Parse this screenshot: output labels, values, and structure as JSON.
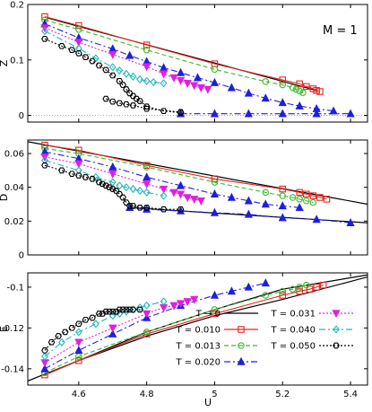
{
  "annotation": "M = 1",
  "colors": {
    "T0": "#000000",
    "T010": "#e8251f",
    "T013": "#3cb82e",
    "T020": "#1f1fe0",
    "T031": "#e020e0",
    "T040": "#20b8b8",
    "T050": "#000000"
  },
  "chart_data": {
    "type": "line",
    "xlabel": "U",
    "xlim": [
      4.45,
      5.45
    ],
    "xticks": [
      "4.6",
      "4.8",
      "5",
      "5.2",
      "5.4"
    ],
    "xtick_values": [
      4.6,
      4.8,
      5.0,
      5.2,
      5.4
    ],
    "legend": {
      "position": "inside-bottom-right of bottom panel",
      "entries": [
        {
          "key": "T0",
          "label": "T → 0",
          "marker": "none",
          "dash": "solid"
        },
        {
          "key": "T010",
          "label": "T = 0.010",
          "marker": "square",
          "dash": "solid"
        },
        {
          "key": "T013",
          "label": "T = 0.013",
          "marker": "circle",
          "dash": "dashed"
        },
        {
          "key": "T020",
          "label": "T = 0.020",
          "marker": "triangle-up",
          "dash": "dashdot"
        },
        {
          "key": "T031",
          "label": "T = 0.031",
          "marker": "triangle-down",
          "dash": "dotted"
        },
        {
          "key": "T040",
          "label": "T = 0.040",
          "marker": "diamond",
          "dash": "dashdot"
        },
        {
          "key": "T050",
          "label": "T = 0.050",
          "marker": "hexagon",
          "dash": "dotted"
        }
      ]
    },
    "panels": [
      {
        "ylabel": "Z",
        "ylim": [
          -0.012,
          0.2
        ],
        "yticks": [
          "0",
          "0.1",
          "0.2"
        ],
        "ytick_values": [
          0,
          0.1,
          0.2
        ],
        "series": [
          {
            "key": "T0",
            "x": [
              4.5,
              5.3
            ],
            "y": [
              0.177,
              0.045
            ]
          },
          {
            "key": "T010",
            "x": [
              4.5,
              4.6,
              4.8,
              5.0,
              5.2,
              5.25,
              5.27,
              5.29,
              5.3,
              5.31
            ],
            "y": [
              0.178,
              0.162,
              0.127,
              0.093,
              0.064,
              0.057,
              0.052,
              0.048,
              0.045,
              0.043
            ]
          },
          {
            "key": "T013",
            "x": [
              4.5,
              4.6,
              4.8,
              5.0,
              5.15,
              5.2,
              5.23,
              5.24,
              5.25,
              5.26
            ],
            "y": [
              0.172,
              0.155,
              0.118,
              0.083,
              0.061,
              0.055,
              0.05,
              0.047,
              0.044,
              0.041
            ]
          },
          {
            "key": "T020",
            "x": [
              4.5,
              4.6,
              4.7,
              4.75,
              4.8,
              4.85,
              4.9,
              4.95,
              5.0,
              5.05,
              5.1,
              5.15,
              5.2,
              5.25,
              5.3,
              5.35
            ],
            "y": [
              0.165,
              0.14,
              0.12,
              0.108,
              0.097,
              0.086,
              0.077,
              0.068,
              0.059,
              0.05,
              0.04,
              0.031,
              0.023,
              0.017,
              0.012,
              0.008
            ]
          },
          {
            "key": "T020b",
            "x": [
              4.9,
              5.0,
              5.1,
              5.2,
              5.3,
              5.4
            ],
            "y": [
              0.003,
              0.003,
              0.003,
              0.003,
              0.003,
              0.003
            ]
          },
          {
            "key": "T031",
            "x": [
              4.5,
              4.6,
              4.7,
              4.8,
              4.85,
              4.88,
              4.9,
              4.92,
              4.94,
              4.96,
              4.98
            ],
            "y": [
              0.158,
              0.132,
              0.11,
              0.088,
              0.075,
              0.068,
              0.063,
              0.058,
              0.054,
              0.05,
              0.047
            ]
          },
          {
            "key": "T040",
            "x": [
              4.5,
              4.6,
              4.65,
              4.7,
              4.72,
              4.74,
              4.76,
              4.78,
              4.8,
              4.82,
              4.85
            ],
            "y": [
              0.152,
              0.121,
              0.103,
              0.087,
              0.081,
              0.075,
              0.07,
              0.065,
              0.062,
              0.06,
              0.058
            ]
          },
          {
            "key": "T050",
            "x": [
              4.5,
              4.55,
              4.58,
              4.6,
              4.62,
              4.64,
              4.66,
              4.68,
              4.7,
              4.72,
              4.73,
              4.74,
              4.75,
              4.76,
              4.77,
              4.78,
              4.8,
              4.85,
              4.9
            ],
            "y": [
              0.138,
              0.125,
              0.118,
              0.112,
              0.105,
              0.098,
              0.09,
              0.082,
              0.072,
              0.062,
              0.055,
              0.047,
              0.04,
              0.035,
              0.03,
              0.026,
              0.016,
              0.008,
              0.005
            ]
          },
          {
            "key": "T050b",
            "x": [
              4.68,
              4.7,
              4.72,
              4.74,
              4.76,
              4.8,
              4.9
            ],
            "y": [
              0.03,
              0.025,
              0.022,
              0.02,
              0.018,
              0.012,
              0.006
            ]
          }
        ]
      },
      {
        "ylabel": "D",
        "ylim": [
          0,
          0.068
        ],
        "yticks": [
          "0",
          "0.02",
          "0.04",
          "0.06"
        ],
        "ytick_values": [
          0,
          0.02,
          0.04,
          0.06
        ],
        "series": [
          {
            "key": "T0",
            "x": [
              4.45,
              5.45
            ],
            "y": [
              0.067,
              0.03
            ]
          },
          {
            "key": "T0b",
            "x": [
              4.75,
              5.45
            ],
            "y": [
              0.028,
              0.019
            ]
          },
          {
            "key": "T010",
            "x": [
              4.5,
              4.6,
              4.8,
              5.0,
              5.2,
              5.25,
              5.27,
              5.29,
              5.31,
              5.33
            ],
            "y": [
              0.065,
              0.062,
              0.053,
              0.045,
              0.039,
              0.037,
              0.036,
              0.035,
              0.034,
              0.033
            ]
          },
          {
            "key": "T013",
            "x": [
              4.5,
              4.6,
              4.8,
              5.0,
              5.15,
              5.2,
              5.23,
              5.25,
              5.27,
              5.29
            ],
            "y": [
              0.063,
              0.06,
              0.052,
              0.043,
              0.037,
              0.035,
              0.034,
              0.033,
              0.032,
              0.031
            ]
          },
          {
            "key": "T020",
            "x": [
              4.5,
              4.6,
              4.7,
              4.8,
              4.9,
              5.0,
              5.05,
              5.1,
              5.15,
              5.2,
              5.25
            ],
            "y": [
              0.061,
              0.057,
              0.052,
              0.046,
              0.041,
              0.036,
              0.034,
              0.032,
              0.03,
              0.029,
              0.028
            ]
          },
          {
            "key": "T020b",
            "x": [
              4.75,
              4.8,
              4.9,
              5.0,
              5.1,
              5.2,
              5.3,
              5.4
            ],
            "y": [
              0.028,
              0.027,
              0.026,
              0.025,
              0.024,
              0.022,
              0.021,
              0.019
            ]
          },
          {
            "key": "T031",
            "x": [
              4.5,
              4.6,
              4.7,
              4.8,
              4.85,
              4.88,
              4.9,
              4.92,
              4.94,
              4.96
            ],
            "y": [
              0.058,
              0.054,
              0.048,
              0.042,
              0.039,
              0.037,
              0.036,
              0.034,
              0.033,
              0.032
            ]
          },
          {
            "key": "T040",
            "x": [
              4.5,
              4.6,
              4.65,
              4.7,
              4.72,
              4.74,
              4.76,
              4.78,
              4.8,
              4.85
            ],
            "y": [
              0.056,
              0.05,
              0.046,
              0.043,
              0.041,
              0.04,
              0.039,
              0.038,
              0.037,
              0.035
            ]
          },
          {
            "key": "T050",
            "x": [
              4.5,
              4.55,
              4.58,
              4.6,
              4.62,
              4.64,
              4.66,
              4.67,
              4.68,
              4.69,
              4.7,
              4.71,
              4.72,
              4.73,
              4.74,
              4.75,
              4.76,
              4.78,
              4.8,
              4.85,
              4.9
            ],
            "y": [
              0.053,
              0.05,
              0.048,
              0.047,
              0.046,
              0.045,
              0.043,
              0.042,
              0.041,
              0.04,
              0.039,
              0.038,
              0.036,
              0.034,
              0.031,
              0.029,
              0.029,
              0.028,
              0.028,
              0.027,
              0.027
            ]
          }
        ]
      },
      {
        "ylabel": "E",
        "ylim": [
          -0.148,
          -0.093
        ],
        "yticks": [
          "-0.14",
          "-0.12",
          "-0.1"
        ],
        "ytick_values": [
          -0.14,
          -0.12,
          -0.1
        ],
        "series": [
          {
            "key": "T0",
            "x": [
              4.45,
              4.6,
              4.8,
              5.0,
              5.2,
              5.45
            ],
            "y": [
              -0.146,
              -0.136,
              -0.122,
              -0.111,
              -0.101,
              -0.094
            ]
          },
          {
            "key": "T0b",
            "x": [
              4.5,
              4.6,
              4.8,
              5.0,
              5.2,
              5.45
            ],
            "y": [
              -0.143,
              -0.136,
              -0.124,
              -0.114,
              -0.106,
              -0.095
            ]
          },
          {
            "key": "T010",
            "x": [
              4.5,
              4.6,
              4.8,
              5.0,
              5.2,
              5.25,
              5.28,
              5.3,
              5.32
            ],
            "y": [
              -0.143,
              -0.136,
              -0.123,
              -0.113,
              -0.104,
              -0.102,
              -0.101,
              -0.1,
              -0.099
            ]
          },
          {
            "key": "T013",
            "x": [
              4.5,
              4.6,
              4.8,
              5.0,
              5.15,
              5.2,
              5.23,
              5.25,
              5.27
            ],
            "y": [
              -0.142,
              -0.134,
              -0.122,
              -0.111,
              -0.104,
              -0.102,
              -0.101,
              -0.1,
              -0.099
            ]
          },
          {
            "key": "T020",
            "x": [
              4.5,
              4.6,
              4.7,
              4.8,
              4.9,
              5.0,
              5.05,
              5.1,
              5.15
            ],
            "y": [
              -0.14,
              -0.131,
              -0.123,
              -0.115,
              -0.109,
              -0.104,
              -0.102,
              -0.1,
              -0.098
            ]
          },
          {
            "key": "T031",
            "x": [
              4.5,
              4.6,
              4.7,
              4.8,
              4.85,
              4.88,
              4.9,
              4.92,
              4.94
            ],
            "y": [
              -0.137,
              -0.127,
              -0.12,
              -0.113,
              -0.11,
              -0.109,
              -0.108,
              -0.107,
              -0.106
            ]
          },
          {
            "key": "T040",
            "x": [
              4.5,
              4.55,
              4.6,
              4.65,
              4.7,
              4.72,
              4.74,
              4.76,
              4.78,
              4.8,
              4.85
            ],
            "y": [
              -0.134,
              -0.127,
              -0.122,
              -0.118,
              -0.114,
              -0.113,
              -0.112,
              -0.111,
              -0.11,
              -0.109,
              -0.107
            ]
          },
          {
            "key": "T050",
            "x": [
              4.5,
              4.52,
              4.54,
              4.56,
              4.58,
              4.6,
              4.62,
              4.64,
              4.66,
              4.67,
              4.68,
              4.69,
              4.7,
              4.71,
              4.72,
              4.73,
              4.74,
              4.75,
              4.76,
              4.78
            ],
            "y": [
              -0.131,
              -0.127,
              -0.124,
              -0.122,
              -0.12,
              -0.118,
              -0.116,
              -0.115,
              -0.113,
              -0.113,
              -0.112,
              -0.112,
              -0.112,
              -0.112,
              -0.111,
              -0.111,
              -0.111,
              -0.111,
              -0.111,
              -0.111
            ]
          }
        ]
      }
    ]
  }
}
